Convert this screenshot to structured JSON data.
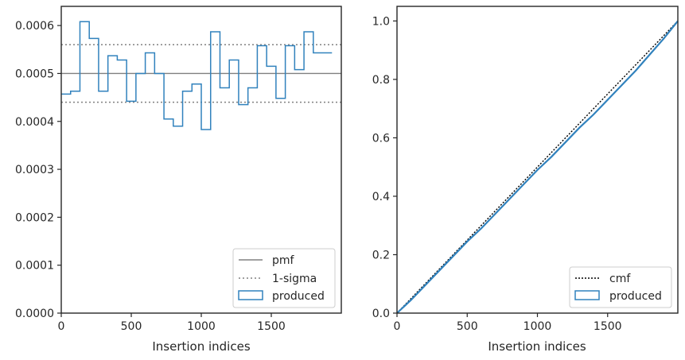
{
  "chart_data": [
    {
      "type": "step",
      "xlabel": "Insertion indices",
      "ylabel": "",
      "xlim": [
        0,
        2000
      ],
      "ylim": [
        0,
        0.00064
      ],
      "xticks": [
        0,
        500,
        1000,
        1500
      ],
      "xtick_labels": [
        "0",
        "500",
        "1000",
        "1500"
      ],
      "yticks": [
        0,
        0.0001,
        0.0002,
        0.0003,
        0.0004,
        0.0005,
        0.0006
      ],
      "ytick_labels": [
        "0.0000",
        "0.0001",
        "0.0002",
        "0.0003",
        "0.0004",
        "0.0005",
        "0.0006"
      ],
      "legend_position": "lower-right",
      "legend": [
        "pmf",
        "1-sigma",
        "produced"
      ],
      "pmf": 0.0005,
      "sigma_band": [
        0.00044,
        0.00056
      ],
      "bin_width": 66.67,
      "produced": [
        0.000457,
        0.000463,
        0.000608,
        0.000573,
        0.000463,
        0.000537,
        0.000528,
        0.000442,
        0.0005,
        0.000543,
        0.0005,
        0.000405,
        0.00039,
        0.000463,
        0.000478,
        0.000383,
        0.000587,
        0.00047,
        0.000528,
        0.000435,
        0.00047,
        0.000558,
        0.000515,
        0.000448,
        0.000558,
        0.000508,
        0.000587,
        0.000543,
        0.000543
      ],
      "colors": {
        "pmf": "#808080",
        "sigma": "#808080",
        "produced": "#3182bd"
      }
    },
    {
      "type": "line",
      "xlabel": "Insertion indices",
      "ylabel": "",
      "xlim": [
        0,
        2000
      ],
      "ylim": [
        0,
        1.05
      ],
      "xticks": [
        0,
        500,
        1000,
        1500
      ],
      "xtick_labels": [
        "0",
        "500",
        "1000",
        "1500"
      ],
      "yticks": [
        0,
        0.2,
        0.4,
        0.6,
        0.8,
        1.0
      ],
      "ytick_labels": [
        "0.0",
        "0.2",
        "0.4",
        "0.6",
        "0.8",
        "1.0"
      ],
      "legend_position": "lower-right",
      "legend": [
        "cmf",
        "produced"
      ],
      "cmf": {
        "x": [
          0,
          2000
        ],
        "y": [
          0,
          1.0
        ]
      },
      "produced": {
        "x": [
          0,
          100,
          200,
          300,
          400,
          500,
          600,
          700,
          800,
          900,
          1000,
          1100,
          1200,
          1300,
          1400,
          1500,
          1600,
          1700,
          1800,
          1900,
          2000
        ],
        "y": [
          0,
          0.045,
          0.095,
          0.145,
          0.195,
          0.245,
          0.29,
          0.34,
          0.39,
          0.44,
          0.49,
          0.535,
          0.585,
          0.635,
          0.68,
          0.73,
          0.78,
          0.83,
          0.885,
          0.94,
          1.0
        ]
      },
      "colors": {
        "cmf": "#000000",
        "produced": "#3182bd"
      }
    }
  ]
}
